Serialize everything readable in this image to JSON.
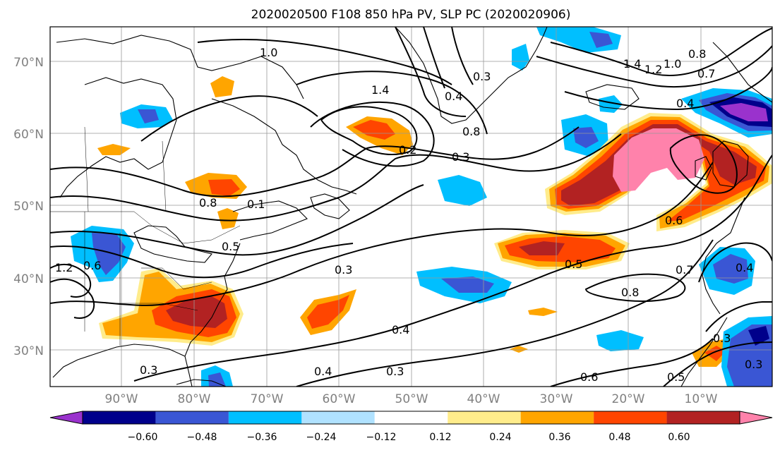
{
  "title": "2020020500 F108 850 hPa PV, SLP PC (2020020906)",
  "map": {
    "lon_labels": [
      "90°W",
      "80°W",
      "70°W",
      "60°W",
      "50°W",
      "40°W",
      "30°W",
      "20°W",
      "10°W"
    ],
    "lat_labels": [
      "70°N",
      "60°N",
      "50°N",
      "40°N",
      "30°N"
    ],
    "contour_labels": [
      "1.0",
      "1.4",
      "0.3",
      "0.4",
      "0.2",
      "0.3",
      "0.8",
      "0.1",
      "0.5",
      "0.3",
      "0.4",
      "0.3",
      "0.4",
      "0.3",
      "0.6",
      "0.5",
      "0.8",
      "0.7",
      "0.6",
      "1.4",
      "1.2",
      "1.0",
      "0.8",
      "0.7",
      "0.4",
      "0.8",
      "0.3",
      "0.5",
      "0.3",
      "1.2",
      "0.6",
      "0.4"
    ],
    "anomaly_colors": {
      "neg_strong": "#9a32cd",
      "neg_darkblue": "#00008b",
      "neg_blue": "#3a56d4",
      "neg_cyan": "#00bfff",
      "neg_light": "#b0e2ff",
      "pos_light": "#ffec8b",
      "pos_orange": "#ffa500",
      "pos_redorange": "#ff4500",
      "pos_red": "#b22222",
      "pos_pink": "#ff82ab"
    }
  },
  "colorbar": {
    "ticks": [
      "−0.60",
      "−0.48",
      "−0.36",
      "−0.24",
      "−0.12",
      "0.12",
      "0.24",
      "0.36",
      "0.48",
      "0.60"
    ],
    "colors": [
      "#9a32cd",
      "#00008b",
      "#3a56d4",
      "#00bfff",
      "#b0e2ff",
      "#ffffff",
      "#ffec8b",
      "#ffa500",
      "#ff4500",
      "#b22222",
      "#ff82ab"
    ]
  }
}
